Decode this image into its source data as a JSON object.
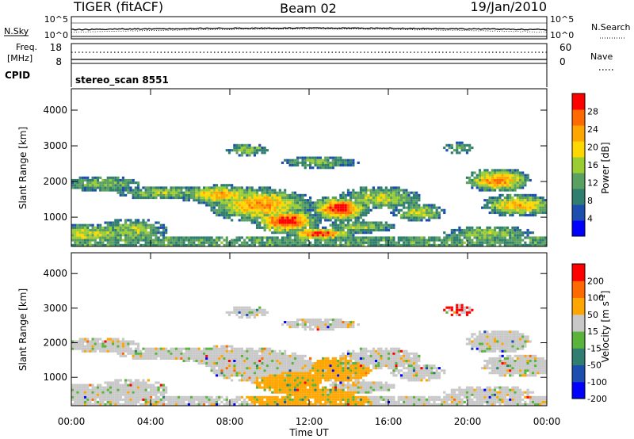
{
  "header": {
    "title": "TIGER (fitACF)",
    "beam": "Beam 02",
    "date": "19/Jan/2010"
  },
  "aux_panels": {
    "nsky_label": "N.Sky",
    "nsky_ticks": [
      "10^5",
      "10^0"
    ],
    "nsearch_label": "N.Search",
    "freq_label_1": "Freq.",
    "freq_label_2": "[MHz]",
    "freq_ticks": [
      "18",
      "8"
    ],
    "nave_label": "Nave",
    "nave_ticks": [
      "60",
      "0"
    ],
    "cpid_label": "CPID",
    "cpid_value": "stereo_scan 8551"
  },
  "chart_data": [
    {
      "type": "heatmap",
      "name": "power",
      "xlabel": "Time UT",
      "ylabel": "Slant Range [km]",
      "x_ticks": [
        "00:00",
        "04:00",
        "08:00",
        "12:00",
        "16:00",
        "20:00",
        "00:00"
      ],
      "x_tick_hours": [
        0,
        4,
        8,
        12,
        16,
        20,
        24
      ],
      "y_ticks": [
        1000,
        2000,
        3000,
        4000
      ],
      "ylim": [
        180,
        4600
      ],
      "xlim_hours": [
        0,
        24
      ],
      "colorbar": {
        "label": "Power [dB]",
        "ticks": [
          "28",
          "24",
          "20",
          "16",
          "12",
          "8",
          "4"
        ],
        "tick_values": [
          28,
          24,
          20,
          16,
          12,
          8,
          4
        ],
        "range": [
          0,
          32
        ],
        "colors": [
          "#0000ff",
          "#1c4eb0",
          "#2f7e6f",
          "#5aa060",
          "#9acd32",
          "#ffd700",
          "#ffa500",
          "#ff6a00",
          "#ff0000"
        ]
      }
    },
    {
      "type": "heatmap",
      "name": "velocity",
      "xlabel": "Time UT",
      "ylabel": "Slant Range [km]",
      "x_ticks": [
        "00:00",
        "04:00",
        "08:00",
        "12:00",
        "16:00",
        "20:00",
        "00:00"
      ],
      "x_tick_hours": [
        0,
        4,
        8,
        12,
        16,
        20,
        24
      ],
      "y_ticks": [
        1000,
        2000,
        3000,
        4000
      ],
      "ylim": [
        180,
        4600
      ],
      "xlim_hours": [
        0,
        24
      ],
      "colorbar": {
        "label": "Velocity [m s^-1]",
        "ticks": [
          "200",
          "100",
          "50",
          "15",
          "-15",
          "-50",
          "-100",
          "-200"
        ],
        "colors": [
          "#0000ff",
          "#1c4eb0",
          "#2f7e6f",
          "#5ab43c",
          "#c8c8c8",
          "#ffa500",
          "#ff6a00",
          "#ff0000"
        ]
      }
    }
  ]
}
